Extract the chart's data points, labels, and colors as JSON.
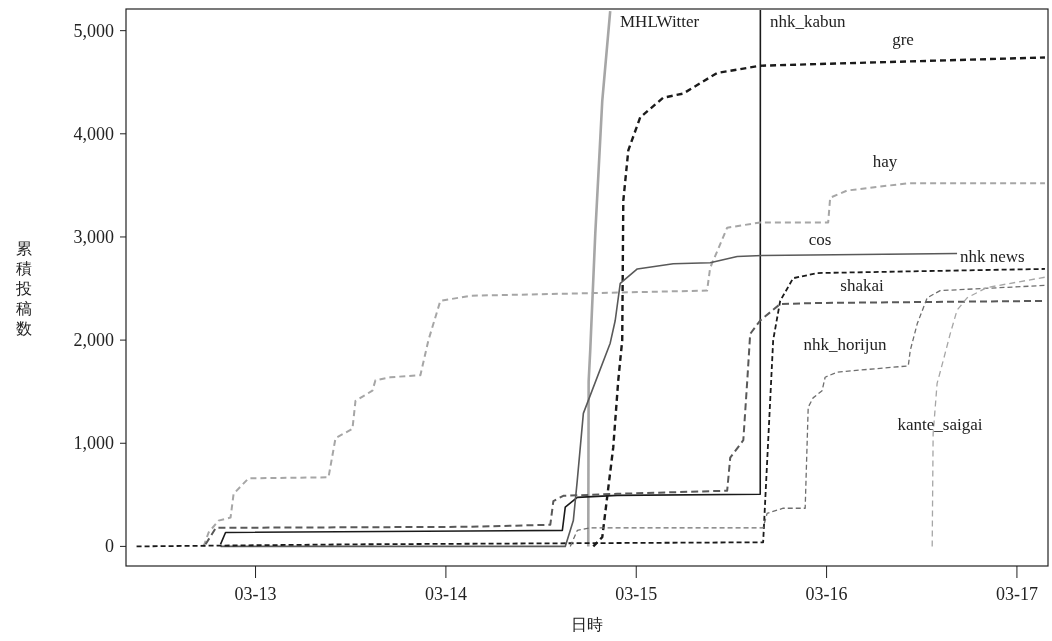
{
  "chart_data": {
    "type": "line",
    "xlabel": "日時",
    "ylabel": "累積投稿数",
    "xlim": [
      "--03-12T07:40",
      "--03-17T03:55"
    ],
    "ylim": [
      -190,
      5210
    ],
    "xticks": [
      {
        "value": "--03-13",
        "label": "03-13"
      },
      {
        "value": "--03-14",
        "label": "03-14"
      },
      {
        "value": "--03-15",
        "label": "03-15"
      },
      {
        "value": "--03-16",
        "label": "03-16"
      },
      {
        "value": "--03-17",
        "label": "03-17"
      }
    ],
    "yticks": [
      0,
      {
        "value": 1000,
        "label": "1,000"
      },
      {
        "value": 2000,
        "label": "2,000"
      },
      {
        "value": 3000,
        "label": "3,000"
      },
      {
        "value": 4000,
        "label": "4,000"
      },
      {
        "value": 5000,
        "label": "5,000"
      }
    ],
    "series": [
      {
        "name": "MHLWitter",
        "color": "#a6a6a6",
        "line_style": "solid",
        "x": [
          "--03-14T17:57",
          "--03-14T18:00",
          "--03-14T18:12",
          "--03-14T18:50",
          "--03-14T19:43",
          "--03-14T20:43"
        ],
        "values": [
          0,
          1600,
          1900,
          3030,
          4320,
          5190
        ]
      },
      {
        "name": "nhk_kabun",
        "color": "#1a1a1a",
        "line_style": "solid",
        "x": [
          "--03-12T19:35",
          "--03-12T20:13",
          "--03-14T14:41",
          "--03-14T15:03",
          "--03-14T16:34",
          "--03-14T21:36",
          "--03-15T15:38",
          "--03-15T15:39"
        ],
        "values": [
          20,
          135,
          155,
          380,
          475,
          495,
          505,
          5200
        ]
      },
      {
        "name": "gre",
        "color": "#1a1a1a",
        "line_style": "dashed",
        "x": [
          "--03-14T18:35",
          "--03-14T19:43",
          "--03-14T21:06",
          "--03-14T21:44",
          "--03-14T22:14",
          "--03-14T22:22",
          "--03-14T23:00",
          "--03-15T00:30",
          "--03-15T03:24",
          "--03-15T05:55",
          "--03-15T10:12",
          "--03-15T15:38",
          "--03-17T03:32"
        ],
        "values": [
          0,
          90,
          960,
          1610,
          2000,
          3350,
          3840,
          4160,
          4350,
          4390,
          4590,
          4660,
          4740
        ]
      },
      {
        "name": "hay",
        "color": "#a6a6a6",
        "line_style": "dashed",
        "x": [
          "--03-12T17:27",
          "--03-12T18:05",
          "--03-12T19:20",
          "--03-12T20:51",
          "--03-12T21:14",
          "--03-12T23:07",
          "--03-13T09:12",
          "--03-13T10:05",
          "--03-13T12:13",
          "--03-13T12:36",
          "--03-13T14:44",
          "--03-13T15:07",
          "--03-13T17:00",
          "--03-13T20:47",
          "--03-13T21:48",
          "--03-13T23:18",
          "--03-14T03:05",
          "--03-15T08:56",
          "--03-15T09:19",
          "--03-15T11:28",
          "--03-15T15:38",
          "--03-16T00:12",
          "--03-16T00:27",
          "--03-16T02:35",
          "--03-16T10:11",
          "--03-17T03:32"
        ],
        "values": [
          0,
          135,
          250,
          280,
          510,
          660,
          670,
          1050,
          1140,
          1410,
          1510,
          1610,
          1640,
          1660,
          2000,
          2380,
          2430,
          2480,
          2700,
          3090,
          3140,
          3140,
          3380,
          3450,
          3520,
          3520
        ]
      },
      {
        "name": "cos",
        "color": "#595959",
        "line_style": "solid",
        "x": [
          "--03-12T19:35",
          "--03-14T15:03",
          "--03-14T16:04",
          "--03-14T16:34",
          "--03-14T17:20",
          "--03-14T20:43",
          "--03-14T21:21",
          "--03-14T21:59",
          "--03-15T00:08",
          "--03-15T04:40",
          "--03-15T09:19",
          "--03-15T12:44",
          "--03-15T15:53",
          "--03-16T16:27"
        ],
        "values": [
          0,
          0,
          250,
          640,
          1290,
          1970,
          2190,
          2550,
          2690,
          2740,
          2750,
          2810,
          2820,
          2840
        ]
      },
      {
        "name": "nhk news",
        "color": "#1a1a1a",
        "line_style": "dashed",
        "x": [
          "--03-12T09:00",
          "--03-13T12:00",
          "--03-15T16:00",
          "--03-15T17:16",
          "--03-15T18:09",
          "--03-15T19:47",
          "--03-15T22:49",
          "--03-17T03:32"
        ],
        "values": [
          0,
          20,
          40,
          2000,
          2380,
          2600,
          2650,
          2690
        ]
      },
      {
        "name": "shakai",
        "color": "#595959",
        "line_style": "dashed",
        "x": [
          "--03-12T17:42",
          "--03-12T19:00",
          "--03-14T03:05",
          "--03-14T13:10",
          "--03-14T13:33",
          "--03-14T14:48",
          "--03-14T21:36",
          "--03-15T11:28",
          "--03-15T11:51",
          "--03-15T13:30",
          "--03-15T14:00",
          "--03-15T14:22",
          "--03-15T15:38",
          "--03-15T18:09",
          "--03-15T22:49",
          "--03-17T03:32"
        ],
        "values": [
          20,
          180,
          190,
          210,
          440,
          490,
          510,
          540,
          860,
          1030,
          1610,
          2060,
          2190,
          2350,
          2360,
          2380
        ]
      },
      {
        "name": "nhk_horijun",
        "color": "#6e6e6e",
        "line_style": "dashed",
        "x": [
          "--03-14T15:41",
          "--03-14T16:34",
          "--03-14T18:12",
          "--03-15T16:00",
          "--03-15T16:30",
          "--03-15T18:32",
          "--03-15T21:18",
          "--03-15T21:41",
          "--03-15T22:18",
          "--03-15T23:26",
          "--03-15T23:49",
          "--03-16T01:20",
          "--03-16T10:18",
          "--03-16T10:33",
          "--03-16T11:26",
          "--03-16T12:41",
          "--03-16T14:19",
          "--03-17T03:32"
        ],
        "values": [
          0,
          155,
          180,
          180,
          320,
          370,
          370,
          1350,
          1440,
          1510,
          1640,
          1690,
          1750,
          1900,
          2160,
          2410,
          2480,
          2530
        ]
      },
      {
        "name": "kante_saigai",
        "color": "#a6a6a6",
        "line_style": "dashed",
        "x": [
          "--03-16T13:19",
          "--03-16T13:26",
          "--03-16T13:56",
          "--03-16T14:42",
          "--03-16T15:35",
          "--03-16T16:27",
          "--03-16T17:43",
          "--03-16T20:14",
          "--03-17T03:32"
        ],
        "values": [
          0,
          1090,
          1580,
          1800,
          2060,
          2290,
          2410,
          2510,
          2610
        ]
      }
    ]
  }
}
